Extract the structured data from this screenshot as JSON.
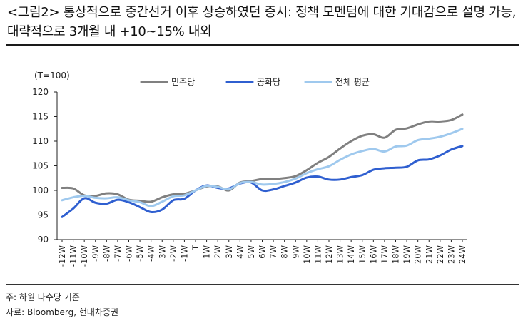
{
  "header": {
    "title": "<그림2> 통상적으로 중간선거 이후 상승하였던 증시: 정책 모멘텀에 대한 기대감으로 설명 가능, 대략적으로 3개월 내 +10~15% 내외"
  },
  "footer": {
    "note": "주: 하원 다수당 기준",
    "source": "자료: Bloomberg, 현대차증권"
  },
  "chart_data": {
    "type": "line",
    "title": "",
    "ylabel": "(T=100)",
    "xlabel": "",
    "ylim": [
      90,
      120
    ],
    "yticks": [
      90,
      95,
      100,
      105,
      110,
      115,
      120
    ],
    "grid": false,
    "legend_position": "top",
    "categories": [
      "-12W",
      "-11W",
      "-10W",
      "-9W",
      "-8W",
      "-7W",
      "-6W",
      "-5W",
      "-4W",
      "-3W",
      "-2W",
      "-1W",
      "T",
      "1W",
      "2W",
      "3W",
      "4W",
      "5W",
      "6W",
      "7W",
      "8W",
      "9W",
      "10W",
      "11W",
      "12W",
      "13W",
      "14W",
      "15W",
      "16W",
      "17W",
      "18W",
      "19W",
      "20W",
      "21W",
      "22W",
      "23W",
      "24W"
    ],
    "series": [
      {
        "name": "민주당",
        "color": "#808080",
        "values": [
          100.5,
          100.4,
          99.0,
          98.9,
          99.4,
          99.2,
          98.1,
          97.9,
          97.7,
          98.6,
          99.2,
          99.3,
          100.0,
          100.8,
          100.8,
          100.0,
          101.6,
          101.9,
          102.3,
          102.3,
          102.5,
          102.9,
          104.1,
          105.6,
          106.8,
          108.5,
          110.0,
          111.1,
          111.4,
          110.7,
          112.3,
          112.6,
          113.4,
          114.0,
          114.0,
          114.3,
          115.4
        ]
      },
      {
        "name": "공화당",
        "color": "#2f5fd0",
        "values": [
          94.6,
          96.3,
          98.4,
          97.5,
          97.3,
          98.1,
          97.6,
          96.6,
          95.6,
          96.1,
          98.0,
          98.3,
          100.0,
          101.0,
          100.5,
          100.4,
          101.4,
          101.6,
          100.0,
          100.2,
          100.9,
          101.6,
          102.6,
          102.8,
          102.2,
          102.2,
          102.7,
          103.1,
          104.2,
          104.5,
          104.6,
          104.8,
          106.1,
          106.3,
          107.1,
          108.3,
          109.0
        ]
      },
      {
        "name": "전체 평균",
        "color": "#9fc9ee",
        "values": [
          98.0,
          98.6,
          98.9,
          98.5,
          98.4,
          98.6,
          98.0,
          97.6,
          96.8,
          97.7,
          98.8,
          99.0,
          100.0,
          100.9,
          100.7,
          100.2,
          101.5,
          101.7,
          101.2,
          101.3,
          101.7,
          102.4,
          103.5,
          104.3,
          104.9,
          106.2,
          107.3,
          108.0,
          108.4,
          107.9,
          108.9,
          109.1,
          110.2,
          110.5,
          110.9,
          111.6,
          112.5
        ]
      }
    ]
  }
}
